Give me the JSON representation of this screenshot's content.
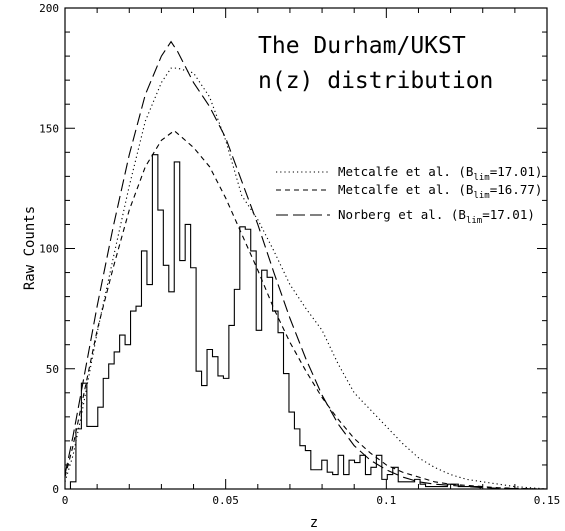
{
  "chart_data": {
    "type": "line",
    "title_lines": [
      "The Durham/UKST",
      "n(z) distribution"
    ],
    "xlabel": "z",
    "ylabel": "Raw Counts",
    "xlim": [
      0,
      0.15
    ],
    "ylim": [
      0,
      200
    ],
    "x_ticks": [
      0,
      0.05,
      0.1,
      0.15
    ],
    "x_tick_labels": [
      "0",
      "0.05",
      "0.1",
      "0.15"
    ],
    "y_ticks": [
      0,
      50,
      100,
      150,
      200
    ],
    "y_tick_labels": [
      "0",
      "50",
      "100",
      "150",
      "200"
    ],
    "grid": false,
    "legend_position": "right, below title",
    "histogram": {
      "style": "step",
      "bin_width": 0.0017,
      "bin_start": 0.0017,
      "counts": [
        3,
        25,
        44,
        26,
        26,
        34,
        46,
        52,
        57,
        64,
        60,
        74,
        76,
        99,
        85,
        139,
        116,
        93,
        82,
        136,
        95,
        110,
        92,
        49,
        43,
        58,
        55,
        47,
        46,
        68,
        83,
        109,
        108,
        99,
        66,
        91,
        88,
        74,
        65,
        48,
        32,
        25,
        18,
        16,
        8,
        8,
        12,
        7,
        6,
        14,
        6,
        12,
        11,
        14,
        6,
        9,
        14,
        4,
        6,
        9,
        3,
        3,
        3,
        4,
        2,
        1,
        1,
        1,
        1,
        2,
        2,
        1,
        1,
        1,
        1
      ]
    },
    "series": [
      {
        "name": "Metcalfe et al.",
        "blim": "17.01",
        "style": "dotted",
        "x": [
          0,
          0.0025,
          0.005,
          0.01,
          0.015,
          0.02,
          0.025,
          0.03,
          0.033,
          0.035,
          0.04,
          0.045,
          0.05,
          0.055,
          0.06,
          0.065,
          0.07,
          0.075,
          0.08,
          0.085,
          0.09,
          0.095,
          0.1,
          0.105,
          0.11,
          0.115,
          0.12,
          0.125,
          0.13,
          0.135,
          0.14,
          0.145,
          0.15
        ],
        "values": [
          3,
          14,
          30,
          65,
          96,
          126,
          153,
          169,
          175,
          175,
          173,
          163,
          145,
          122,
          112,
          99,
          85,
          75,
          66,
          52,
          40,
          33,
          26,
          19,
          13,
          9,
          6,
          4,
          3,
          2,
          1,
          0.5,
          0
        ]
      },
      {
        "name": "Metcalfe et al.",
        "blim": "16.77",
        "style": "dashed",
        "x": [
          0,
          0.0025,
          0.005,
          0.01,
          0.015,
          0.02,
          0.025,
          0.03,
          0.034,
          0.04,
          0.045,
          0.05,
          0.055,
          0.06,
          0.065,
          0.07,
          0.075,
          0.08,
          0.085,
          0.09,
          0.095,
          0.1,
          0.105,
          0.11,
          0.115,
          0.12,
          0.125,
          0.13,
          0.135,
          0.14,
          0.145,
          0.15
        ],
        "values": [
          5,
          18,
          34,
          66,
          92,
          116,
          134,
          145,
          149,
          142,
          134,
          121,
          106,
          91,
          75,
          61,
          49,
          38,
          29,
          21,
          15,
          10,
          7,
          5,
          3,
          2,
          1.5,
          1,
          0.5,
          0.3,
          0.1,
          0
        ]
      },
      {
        "name": "Norberg et al.",
        "blim": "17.01",
        "style": "long-dash",
        "x": [
          0,
          0.0025,
          0.005,
          0.01,
          0.015,
          0.02,
          0.025,
          0.03,
          0.033,
          0.035,
          0.04,
          0.045,
          0.05,
          0.055,
          0.06,
          0.065,
          0.07,
          0.075,
          0.08,
          0.085,
          0.09,
          0.095,
          0.1,
          0.105,
          0.11,
          0.115,
          0.12,
          0.125,
          0.13,
          0.135,
          0.14,
          0.145,
          0.15
        ],
        "values": [
          6,
          22,
          40,
          76,
          109,
          139,
          164,
          180,
          186,
          182,
          169,
          159,
          146,
          128,
          110,
          90,
          71,
          54,
          39,
          27,
          18,
          12,
          8,
          5,
          3,
          2,
          1.5,
          1,
          0.6,
          0.3,
          0.2,
          0.1,
          0
        ]
      }
    ],
    "legend": [
      {
        "label": "Metcalfe et al. (B",
        "sub": "lim",
        "value": "=17.01)",
        "style": "dotted"
      },
      {
        "label": "Metcalfe et al. (B",
        "sub": "lim",
        "value": "=16.77)",
        "style": "dashed"
      },
      {
        "label": "Norberg et al. (B",
        "sub": "lim",
        "value": "=17.01)",
        "style": "long-dash"
      }
    ],
    "colors": {
      "line": "#000000",
      "background": "#ffffff"
    }
  }
}
